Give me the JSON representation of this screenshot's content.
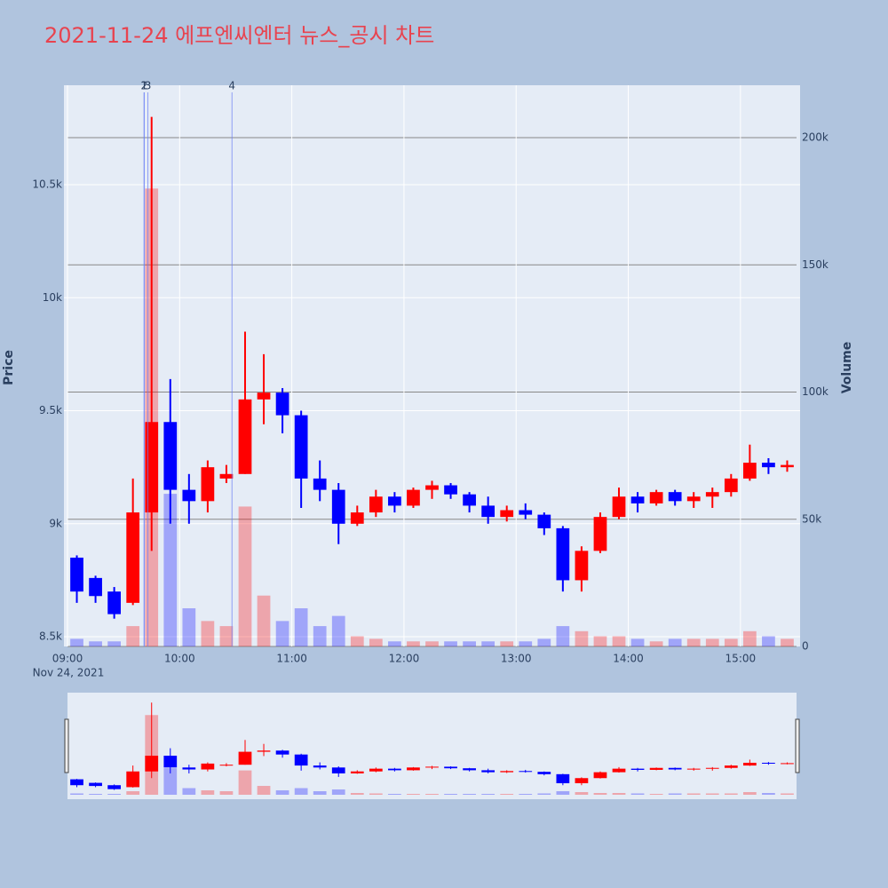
{
  "chart_data": {
    "type": "candlestick",
    "title": "2021-11-24 에프엔씨엔터 뉴스_공시 차트",
    "ylabel": "Price",
    "y2label": "Volume",
    "x": [
      "2021-11-24 09:00",
      "2021-11-24 09:10",
      "2021-11-24 09:20",
      "2021-11-24 09:30",
      "2021-11-24 09:40",
      "2021-11-24 09:50",
      "2021-11-24 10:00",
      "2021-11-24 10:10",
      "2021-11-24 10:20",
      "2021-11-24 10:30",
      "2021-11-24 10:40",
      "2021-11-24 10:50",
      "2021-11-24 11:00",
      "2021-11-24 11:10",
      "2021-11-24 11:20",
      "2021-11-24 11:30",
      "2021-11-24 11:40",
      "2021-11-24 11:50",
      "2021-11-24 12:00",
      "2021-11-24 12:10",
      "2021-11-24 12:20",
      "2021-11-24 12:30",
      "2021-11-24 12:40",
      "2021-11-24 12:50",
      "2021-11-24 13:00",
      "2021-11-24 13:10",
      "2021-11-24 13:20",
      "2021-11-24 13:30",
      "2021-11-24 13:40",
      "2021-11-24 13:50",
      "2021-11-24 14:00",
      "2021-11-24 14:10",
      "2021-11-24 14:20",
      "2021-11-24 14:30",
      "2021-11-24 14:40",
      "2021-11-24 14:50",
      "2021-11-24 15:00",
      "2021-11-24 15:10",
      "2021-11-24 15:20"
    ],
    "open": [
      8850,
      8760,
      8700,
      8650,
      9050,
      9450,
      9150,
      9100,
      9200,
      9220,
      9550,
      9580,
      9480,
      9200,
      9150,
      9000,
      9050,
      9120,
      9080,
      9150,
      9170,
      9130,
      9080,
      9030,
      9060,
      9040,
      8980,
      8750,
      8880,
      9030,
      9120,
      9090,
      9140,
      9100,
      9120,
      9140,
      9200,
      9270,
      9250
    ],
    "high": [
      8860,
      8770,
      8720,
      9200,
      10800,
      9640,
      9220,
      9280,
      9260,
      9850,
      9750,
      9600,
      9500,
      9280,
      9180,
      9080,
      9150,
      9140,
      9160,
      9190,
      9180,
      9140,
      9120,
      9080,
      9090,
      9050,
      8990,
      8900,
      9050,
      9160,
      9140,
      9150,
      9150,
      9140,
      9160,
      9220,
      9350,
      9290,
      9280
    ],
    "low": [
      8650,
      8650,
      8580,
      8640,
      8880,
      9000,
      9000,
      9050,
      9180,
      9220,
      9440,
      9400,
      9070,
      9100,
      8910,
      8990,
      9030,
      9050,
      9070,
      9110,
      9110,
      9050,
      9000,
      9010,
      9020,
      8950,
      8700,
      8700,
      8870,
      9020,
      9050,
      9080,
      9080,
      9070,
      9070,
      9120,
      9190,
      9220,
      9230
    ],
    "close": [
      8700,
      8680,
      8600,
      9050,
      9450,
      9150,
      9100,
      9250,
      9220,
      9550,
      9580,
      9480,
      9200,
      9150,
      9000,
      9050,
      9120,
      9080,
      9150,
      9170,
      9130,
      9080,
      9030,
      9060,
      9040,
      8980,
      8750,
      8880,
      9030,
      9120,
      9090,
      9140,
      9100,
      9120,
      9140,
      9200,
      9270,
      9250,
      9260
    ],
    "volume": [
      3000,
      2000,
      2000,
      8000,
      180000,
      60000,
      15000,
      10000,
      8000,
      55000,
      20000,
      10000,
      15000,
      8000,
      12000,
      4000,
      3000,
      2000,
      2000,
      2000,
      2000,
      2000,
      2000,
      2000,
      2000,
      3000,
      8000,
      6000,
      4000,
      4000,
      3000,
      2000,
      3000,
      3000,
      3000,
      3000,
      6000,
      4000,
      3000
    ],
    "increasing_color": "#ff0000",
    "decreasing_color": "#0000ff",
    "xlim": [
      "2021-11-24 09:00",
      "2021-11-24 15:30"
    ],
    "xticks": [
      {
        "value": "2021-11-24 09:00",
        "label": "09:00"
      },
      {
        "value": "2021-11-24 10:00",
        "label": "10:00"
      },
      {
        "value": "2021-11-24 11:00",
        "label": "11:00"
      },
      {
        "value": "2021-11-24 12:00",
        "label": "12:00"
      },
      {
        "value": "2021-11-24 13:00",
        "label": "13:00"
      },
      {
        "value": "2021-11-24 14:00",
        "label": "14:00"
      },
      {
        "value": "2021-11-24 15:00",
        "label": "15:00"
      }
    ],
    "x_date_label": "Nov 24, 2021",
    "ylim": [
      8457,
      10940
    ],
    "yticks": [
      {
        "value": 8500,
        "label": "8.5k"
      },
      {
        "value": 9000,
        "label": "9k"
      },
      {
        "value": 9500,
        "label": "9.5k"
      },
      {
        "value": 10000,
        "label": "10k"
      },
      {
        "value": 10500,
        "label": "10.5k"
      }
    ],
    "y2lim": [
      0,
      220600
    ],
    "y2ticks": [
      0,
      {
        "value": 50000,
        "label": "50k"
      },
      {
        "value": 100000,
        "label": "100k"
      },
      {
        "value": 150000,
        "label": "150k"
      },
      {
        "value": 200000,
        "label": "200k"
      }
    ],
    "annotations": [
      {
        "x": "2021-11-24 09:41",
        "label": "1"
      },
      {
        "x": "2021-11-24 09:41",
        "label": "2"
      },
      {
        "x": "2021-11-24 09:43",
        "label": "3"
      },
      {
        "x": "2021-11-24 10:28",
        "label": "4"
      }
    ],
    "grid": true
  }
}
